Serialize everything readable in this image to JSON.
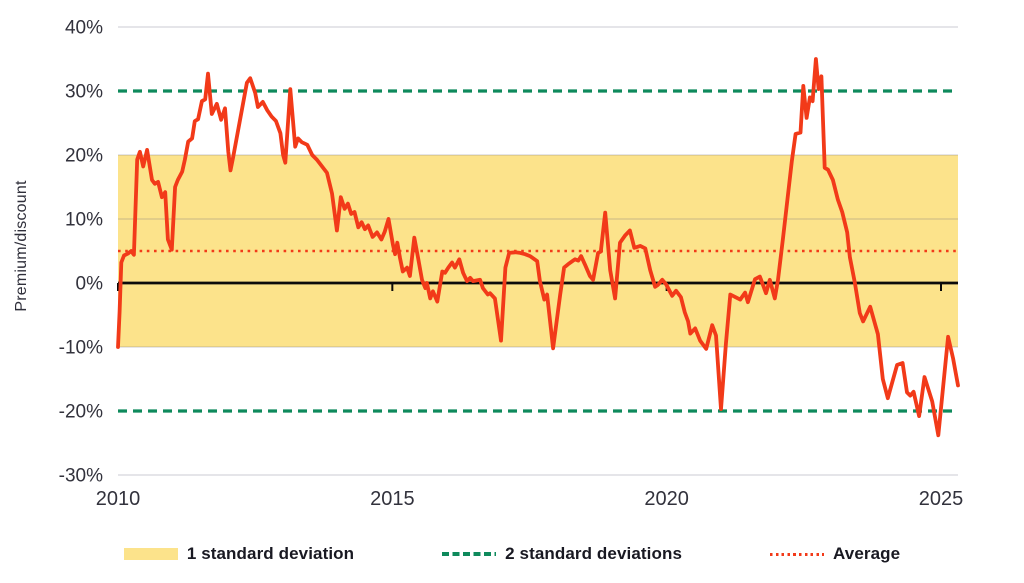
{
  "chart_data": {
    "type": "line",
    "title": "",
    "xlabel": "",
    "ylabel": "Premium/discount",
    "ylim": [
      -30,
      40
    ],
    "xlim": [
      2010,
      2025.35
    ],
    "grid": "horizontal",
    "y_ticks": [
      40,
      30,
      20,
      10,
      0,
      -10,
      -20,
      -30
    ],
    "y_tick_suffix": "%",
    "x_ticks": [
      2010,
      2015,
      2020,
      2025
    ],
    "average_value": 5,
    "one_sd_band": [
      -10,
      20
    ],
    "two_sd_lines": [
      -20,
      30
    ],
    "legend_position": "bottom-center",
    "legend": [
      {
        "label": "1 standard deviation",
        "swatch": "yellow-band"
      },
      {
        "label": "2 standard deviations",
        "swatch": "green-dashed"
      },
      {
        "label": "Average",
        "swatch": "red-dotted"
      }
    ],
    "colors": {
      "line": "#f23a19",
      "band": "#fce38b",
      "two_sd": "#0e8a5c",
      "average": "#f23a19",
      "zero_line": "#0b0b0b",
      "grid": "rgba(100,100,125,0.17)",
      "tick_text": "#32323c"
    },
    "series": [
      {
        "name": "Premium/discount",
        "points": [
          [
            2010.0,
            -10.0
          ],
          [
            2010.03,
            -4.5
          ],
          [
            2010.06,
            3.2
          ],
          [
            2010.11,
            4.3
          ],
          [
            2010.18,
            4.6
          ],
          [
            2010.24,
            5.0
          ],
          [
            2010.29,
            4.4
          ],
          [
            2010.35,
            19.3
          ],
          [
            2010.4,
            20.5
          ],
          [
            2010.46,
            18.2
          ],
          [
            2010.53,
            20.8
          ],
          [
            2010.62,
            16.1
          ],
          [
            2010.67,
            15.5
          ],
          [
            2010.73,
            15.8
          ],
          [
            2010.8,
            13.4
          ],
          [
            2010.86,
            14.2
          ],
          [
            2010.91,
            6.8
          ],
          [
            2010.98,
            5.2
          ],
          [
            2011.04,
            15.0
          ],
          [
            2011.09,
            16.1
          ],
          [
            2011.17,
            17.4
          ],
          [
            2011.22,
            19.3
          ],
          [
            2011.28,
            22.1
          ],
          [
            2011.35,
            22.6
          ],
          [
            2011.4,
            25.3
          ],
          [
            2011.46,
            25.6
          ],
          [
            2011.53,
            28.4
          ],
          [
            2011.59,
            28.7
          ],
          [
            2011.64,
            32.7
          ],
          [
            2011.71,
            26.4
          ],
          [
            2011.8,
            28.0
          ],
          [
            2011.88,
            25.5
          ],
          [
            2011.95,
            27.3
          ],
          [
            2012.01,
            20.5
          ],
          [
            2012.05,
            17.6
          ],
          [
            2012.1,
            19.7
          ],
          [
            2012.22,
            25.3
          ],
          [
            2012.35,
            31.3
          ],
          [
            2012.41,
            32.0
          ],
          [
            2012.5,
            29.7
          ],
          [
            2012.55,
            27.5
          ],
          [
            2012.64,
            28.3
          ],
          [
            2012.72,
            27.0
          ],
          [
            2012.8,
            26.0
          ],
          [
            2012.88,
            25.3
          ],
          [
            2012.96,
            23.4
          ],
          [
            2013.01,
            20.0
          ],
          [
            2013.05,
            18.8
          ],
          [
            2013.14,
            30.3
          ],
          [
            2013.23,
            21.3
          ],
          [
            2013.28,
            22.6
          ],
          [
            2013.35,
            22.0
          ],
          [
            2013.45,
            21.6
          ],
          [
            2013.54,
            20.0
          ],
          [
            2013.63,
            19.2
          ],
          [
            2013.72,
            18.2
          ],
          [
            2013.81,
            17.2
          ],
          [
            2013.9,
            14.0
          ],
          [
            2013.99,
            8.2
          ],
          [
            2014.06,
            13.4
          ],
          [
            2014.13,
            11.6
          ],
          [
            2014.19,
            12.4
          ],
          [
            2014.25,
            10.8
          ],
          [
            2014.31,
            11.1
          ],
          [
            2014.38,
            8.7
          ],
          [
            2014.44,
            9.5
          ],
          [
            2014.5,
            8.4
          ],
          [
            2014.56,
            9.0
          ],
          [
            2014.64,
            7.2
          ],
          [
            2014.72,
            7.9
          ],
          [
            2014.8,
            6.8
          ],
          [
            2014.86,
            8.0
          ],
          [
            2014.93,
            10.0
          ],
          [
            2015.01,
            6.0
          ],
          [
            2015.05,
            4.5
          ],
          [
            2015.09,
            6.3
          ],
          [
            2015.14,
            3.9
          ],
          [
            2015.19,
            1.8
          ],
          [
            2015.27,
            2.4
          ],
          [
            2015.32,
            1.1
          ],
          [
            2015.4,
            7.1
          ],
          [
            2015.47,
            3.9
          ],
          [
            2015.54,
            0.5
          ],
          [
            2015.6,
            -0.8
          ],
          [
            2015.63,
            0.0
          ],
          [
            2015.69,
            -2.4
          ],
          [
            2015.74,
            -1.3
          ],
          [
            2015.82,
            -2.9
          ],
          [
            2015.91,
            1.8
          ],
          [
            2015.96,
            1.6
          ],
          [
            2016.02,
            2.4
          ],
          [
            2016.09,
            3.2
          ],
          [
            2016.14,
            2.4
          ],
          [
            2016.22,
            3.7
          ],
          [
            2016.29,
            1.6
          ],
          [
            2016.36,
            0.3
          ],
          [
            2016.42,
            0.8
          ],
          [
            2016.47,
            0.3
          ],
          [
            2016.6,
            0.5
          ],
          [
            2016.65,
            -0.8
          ],
          [
            2016.74,
            -1.8
          ],
          [
            2016.78,
            -1.6
          ],
          [
            2016.87,
            -2.4
          ],
          [
            2016.98,
            -9.0
          ],
          [
            2017.06,
            2.4
          ],
          [
            2017.13,
            4.7
          ],
          [
            2017.24,
            4.8
          ],
          [
            2017.33,
            4.7
          ],
          [
            2017.42,
            4.5
          ],
          [
            2017.51,
            4.2
          ],
          [
            2017.64,
            3.4
          ],
          [
            2017.69,
            0.3
          ],
          [
            2017.77,
            -2.6
          ],
          [
            2017.82,
            -1.8
          ],
          [
            2017.93,
            -10.2
          ],
          [
            2018.06,
            -1.8
          ],
          [
            2018.13,
            2.4
          ],
          [
            2018.2,
            2.9
          ],
          [
            2018.28,
            3.4
          ],
          [
            2018.33,
            3.7
          ],
          [
            2018.39,
            3.5
          ],
          [
            2018.44,
            4.2
          ],
          [
            2018.51,
            2.9
          ],
          [
            2018.6,
            1.1
          ],
          [
            2018.66,
            0.5
          ],
          [
            2018.75,
            4.7
          ],
          [
            2018.8,
            4.9
          ],
          [
            2018.88,
            11.0
          ],
          [
            2018.97,
            2.0
          ],
          [
            2019.06,
            -2.4
          ],
          [
            2019.15,
            6.3
          ],
          [
            2019.24,
            7.4
          ],
          [
            2019.33,
            8.2
          ],
          [
            2019.41,
            5.5
          ],
          [
            2019.52,
            5.8
          ],
          [
            2019.61,
            5.4
          ],
          [
            2019.7,
            2.0
          ],
          [
            2019.79,
            -0.6
          ],
          [
            2019.84,
            -0.3
          ],
          [
            2019.92,
            0.5
          ],
          [
            2019.99,
            -0.2
          ],
          [
            2020.1,
            -2.0
          ],
          [
            2020.17,
            -1.2
          ],
          [
            2020.26,
            -2.2
          ],
          [
            2020.33,
            -4.6
          ],
          [
            2020.39,
            -6.0
          ],
          [
            2020.43,
            -7.9
          ],
          [
            2020.52,
            -7.1
          ],
          [
            2020.61,
            -9.0
          ],
          [
            2020.72,
            -10.3
          ],
          [
            2020.83,
            -6.6
          ],
          [
            2020.9,
            -8.2
          ],
          [
            2020.99,
            -19.7
          ],
          [
            2021.08,
            -9.5
          ],
          [
            2021.16,
            -1.8
          ],
          [
            2021.25,
            -2.2
          ],
          [
            2021.34,
            -2.6
          ],
          [
            2021.43,
            -1.5
          ],
          [
            2021.48,
            -3.0
          ],
          [
            2021.61,
            0.6
          ],
          [
            2021.7,
            1.0
          ],
          [
            2021.81,
            -1.6
          ],
          [
            2021.88,
            0.5
          ],
          [
            2021.97,
            -2.4
          ],
          [
            2022.03,
            0.5
          ],
          [
            2022.12,
            7.0
          ],
          [
            2022.2,
            13.0
          ],
          [
            2022.28,
            19.0
          ],
          [
            2022.35,
            23.3
          ],
          [
            2022.44,
            23.5
          ],
          [
            2022.49,
            30.8
          ],
          [
            2022.55,
            25.8
          ],
          [
            2022.61,
            29.0
          ],
          [
            2022.66,
            28.4
          ],
          [
            2022.72,
            35.0
          ],
          [
            2022.77,
            30.3
          ],
          [
            2022.82,
            32.3
          ],
          [
            2022.88,
            18.0
          ],
          [
            2022.94,
            17.7
          ],
          [
            2023.03,
            16.1
          ],
          [
            2023.12,
            13.0
          ],
          [
            2023.2,
            11.1
          ],
          [
            2023.29,
            7.9
          ],
          [
            2023.34,
            4.0
          ],
          [
            2023.43,
            0.0
          ],
          [
            2023.52,
            -4.7
          ],
          [
            2023.58,
            -6.0
          ],
          [
            2023.71,
            -3.7
          ],
          [
            2023.8,
            -6.5
          ],
          [
            2023.85,
            -8.0
          ],
          [
            2023.94,
            -15.0
          ],
          [
            2024.03,
            -18.0
          ],
          [
            2024.2,
            -12.8
          ],
          [
            2024.3,
            -12.5
          ],
          [
            2024.38,
            -17.1
          ],
          [
            2024.44,
            -17.6
          ],
          [
            2024.5,
            -17.0
          ],
          [
            2024.6,
            -20.8
          ],
          [
            2024.7,
            -14.7
          ],
          [
            2024.84,
            -18.5
          ],
          [
            2024.95,
            -23.8
          ],
          [
            2025.13,
            -8.4
          ],
          [
            2025.22,
            -11.8
          ],
          [
            2025.31,
            -16.0
          ]
        ]
      }
    ]
  }
}
